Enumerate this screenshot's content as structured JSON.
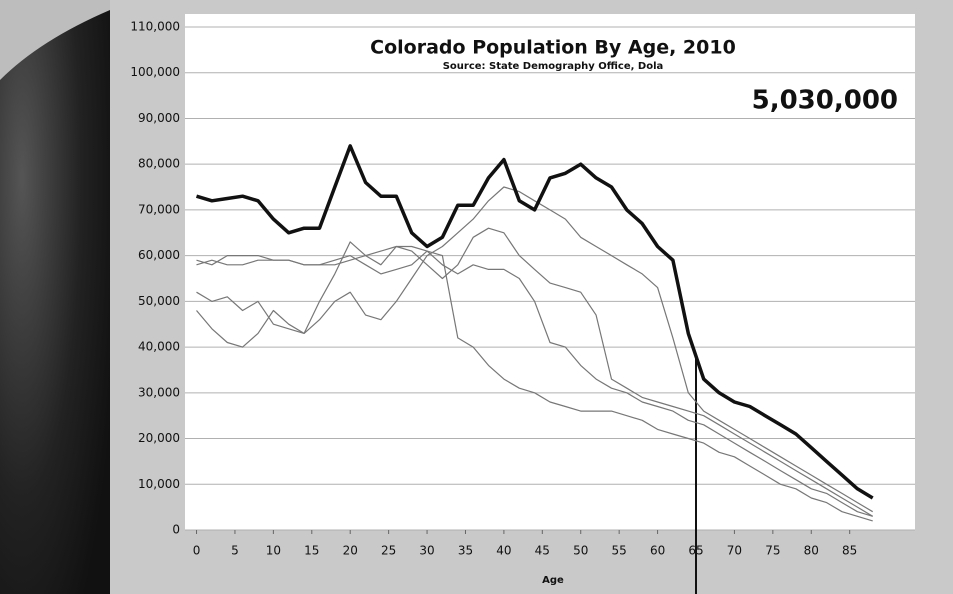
{
  "chart_data": {
    "type": "line",
    "title": "Colorado Population By Age, 2010",
    "subtitle": "Source: State Demography Office, Dola",
    "annotation": "5,030,000",
    "xlabel": "Age",
    "x": [
      0,
      2,
      4,
      6,
      8,
      10,
      12,
      14,
      16,
      18,
      20,
      22,
      24,
      26,
      28,
      30,
      32,
      34,
      36,
      38,
      40,
      42,
      44,
      46,
      48,
      50,
      52,
      54,
      56,
      58,
      60,
      62,
      64,
      66,
      68,
      70,
      72,
      74,
      76,
      78,
      80,
      82,
      84,
      86,
      88
    ],
    "series": [
      {
        "color": "#111111",
        "line_width": 3.5,
        "values": [
          73000,
          72000,
          72500,
          73000,
          72000,
          68000,
          65000,
          66000,
          66000,
          75000,
          84000,
          76000,
          73000,
          73000,
          65000,
          62000,
          64000,
          71000,
          71000,
          77000,
          81000,
          72000,
          70000,
          77000,
          78000,
          80000,
          77000,
          75000,
          70000,
          67000,
          62000,
          59000,
          43000,
          33000,
          30000,
          28000,
          27000,
          25000,
          23000,
          21000,
          18000,
          15000,
          12000,
          9000,
          7000
        ]
      },
      {
        "color": "#777777",
        "line_width": 1.2,
        "values": [
          52000,
          50000,
          51000,
          48000,
          50000,
          45000,
          44000,
          43000,
          46000,
          50000,
          52000,
          47000,
          46000,
          50000,
          55000,
          60000,
          62000,
          65000,
          68000,
          72000,
          75000,
          74000,
          72000,
          70000,
          68000,
          64000,
          62000,
          60000,
          58000,
          56000,
          53000,
          42000,
          30000,
          26000,
          24000,
          22000,
          20000,
          18000,
          16000,
          14000,
          12000,
          10000,
          8000,
          6000,
          4000
        ]
      },
      {
        "color": "#777777",
        "line_width": 1.2,
        "values": [
          48000,
          44000,
          41000,
          40000,
          43000,
          48000,
          45000,
          43000,
          50000,
          56000,
          63000,
          60000,
          58000,
          62000,
          61000,
          58000,
          55000,
          58000,
          64000,
          66000,
          65000,
          60000,
          57000,
          54000,
          53000,
          52000,
          47000,
          33000,
          31000,
          29000,
          28000,
          27000,
          26000,
          25000,
          23000,
          21000,
          19000,
          17000,
          15000,
          13000,
          11000,
          9000,
          7000,
          5000,
          3000
        ]
      },
      {
        "color": "#777777",
        "line_width": 1.2,
        "values": [
          58000,
          59000,
          58000,
          58000,
          59000,
          59000,
          59000,
          58000,
          58000,
          58000,
          59000,
          60000,
          61000,
          62000,
          62000,
          61000,
          58000,
          56000,
          58000,
          57000,
          57000,
          55000,
          50000,
          41000,
          40000,
          36000,
          33000,
          31000,
          30000,
          28000,
          27000,
          26000,
          24000,
          23000,
          21000,
          19000,
          17000,
          15000,
          13000,
          11000,
          9000,
          8000,
          6000,
          4000,
          3000
        ]
      },
      {
        "color": "#777777",
        "line_width": 1.2,
        "values": [
          59000,
          58000,
          60000,
          60000,
          60000,
          59000,
          59000,
          58000,
          58000,
          59000,
          60000,
          58000,
          56000,
          57000,
          58000,
          61000,
          60000,
          42000,
          40000,
          36000,
          33000,
          31000,
          30000,
          28000,
          27000,
          26000,
          26000,
          26000,
          25000,
          24000,
          22000,
          21000,
          20000,
          19000,
          17000,
          16000,
          14000,
          12000,
          10000,
          9000,
          7000,
          6000,
          4000,
          3000,
          2000
        ]
      }
    ],
    "reference_line": {
      "x": 65
    },
    "xlim": [
      -1.5,
      93.5
    ],
    "xticks": [
      0,
      5,
      10,
      15,
      20,
      25,
      30,
      35,
      40,
      45,
      50,
      55,
      60,
      65,
      70,
      75,
      80,
      85
    ],
    "ylim": [
      0,
      110000
    ],
    "yticks": [
      0,
      {
        "value": 10000,
        "label": "10,000"
      },
      {
        "value": 20000,
        "label": "20,000"
      },
      {
        "value": 30000,
        "label": "30,000"
      },
      {
        "value": 40000,
        "label": "40,000"
      },
      {
        "value": 50000,
        "label": "50,000"
      },
      {
        "value": 60000,
        "label": "60,000"
      },
      {
        "value": 70000,
        "label": "70,000"
      },
      {
        "value": 80000,
        "label": "80,000"
      },
      {
        "value": 90000,
        "label": "90,000"
      },
      {
        "value": 100000,
        "label": "100,000"
      },
      {
        "value": 110000,
        "label": "110,000"
      }
    ],
    "grid": true
  }
}
